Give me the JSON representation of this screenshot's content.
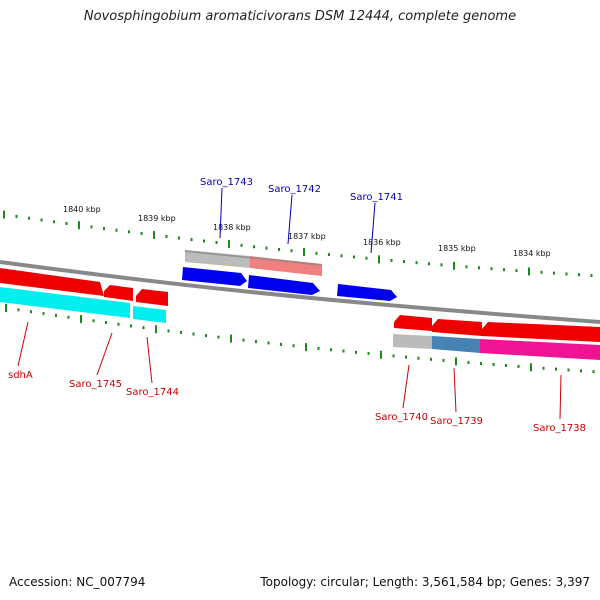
{
  "title": "Novosphingobium aromaticivorans DSM 12444, complete genome",
  "footer": {
    "accession": "Accession: NC_007794",
    "summary": "Topology: circular; Length: 3,561,584 bp; Genes: 3,397"
  },
  "colors": {
    "background": "#ffffff",
    "backbone": "#888888",
    "tick": "#1a8a1a",
    "forward_gene": "#0000ee",
    "reverse_gene": "#ee0000",
    "forward_label": "#0000aa",
    "reverse_label": "#cc0000",
    "cds_cyan": "#00eeee",
    "cds_gray": "#bbbbbb",
    "cds_pink": "#f08080",
    "cds_steelblue": "#4682b4",
    "cds_magenta": "#ee1493"
  },
  "scale_labels": [
    "1840 kbp",
    "1839 kbp",
    "1838 kbp",
    "1837 kbp",
    "1836 kbp",
    "1835 kbp",
    "1834 kbp"
  ],
  "forward_labels": [
    "Saro_1743",
    "Saro_1742",
    "Saro_1741"
  ],
  "reverse_labels": [
    "sdhA",
    "Saro_1745",
    "Saro_1744",
    "Saro_1740",
    "Saro_1739",
    "Saro_1738"
  ]
}
